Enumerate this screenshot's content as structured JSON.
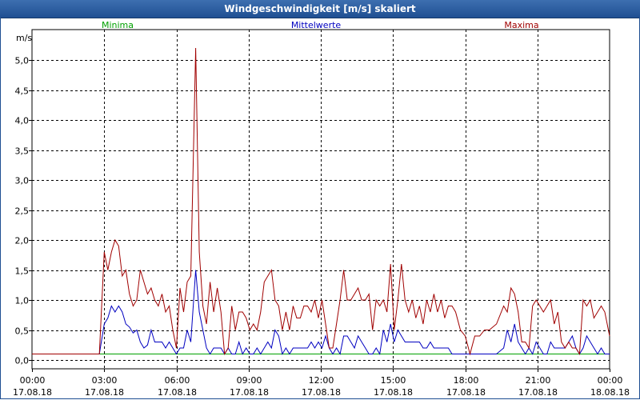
{
  "window": {
    "title": "Windgeschwindigkeit [m/s] skaliert"
  },
  "chart_data": {
    "type": "line",
    "ylabel": "m/s",
    "ylim": [
      -0.1,
      5.35
    ],
    "yticks": [
      0.0,
      0.5,
      1.0,
      1.5,
      2.0,
      2.5,
      3.0,
      3.5,
      4.0,
      4.5,
      5.0
    ],
    "ytick_labels": [
      "0,0",
      "0,5",
      "1,0",
      "1,5",
      "2,0",
      "2,5",
      "3,0",
      "3,5",
      "4,0",
      "4,5",
      "5,0"
    ],
    "xlim_hours": [
      0,
      24
    ],
    "xticks": [
      {
        "hour": 0,
        "time": "00:00",
        "date": "17.08.18"
      },
      {
        "hour": 3,
        "time": "03:00",
        "date": "17.08.18"
      },
      {
        "hour": 6,
        "time": "06:00",
        "date": "17.08.18"
      },
      {
        "hour": 9,
        "time": "09:00",
        "date": "17.08.18"
      },
      {
        "hour": 12,
        "time": "12:00",
        "date": "17.08.18"
      },
      {
        "hour": 15,
        "time": "15:00",
        "date": "17.08.18"
      },
      {
        "hour": 18,
        "time": "18:00",
        "date": "17.08.18"
      },
      {
        "hour": 21,
        "time": "21:00",
        "date": "17.08.18"
      },
      {
        "hour": 24,
        "time": "00:00",
        "date": "18.08.18"
      }
    ],
    "grid": true,
    "legend_position": "top",
    "series": [
      {
        "name": "Minima",
        "color": "#00a000",
        "points": [
          [
            0,
            0.1
          ],
          [
            24,
            0.1
          ]
        ]
      },
      {
        "name": "Mittelwerte",
        "color": "#0000c0",
        "points": [
          [
            0,
            0.1
          ],
          [
            2.8,
            0.1
          ],
          [
            3.0,
            0.6
          ],
          [
            3.15,
            0.7
          ],
          [
            3.3,
            0.9
          ],
          [
            3.45,
            0.8
          ],
          [
            3.6,
            0.9
          ],
          [
            3.75,
            0.8
          ],
          [
            3.9,
            0.6
          ],
          [
            4.05,
            0.55
          ],
          [
            4.2,
            0.45
          ],
          [
            4.35,
            0.5
          ],
          [
            4.5,
            0.3
          ],
          [
            4.65,
            0.2
          ],
          [
            4.8,
            0.25
          ],
          [
            4.95,
            0.5
          ],
          [
            5.1,
            0.3
          ],
          [
            5.25,
            0.3
          ],
          [
            5.4,
            0.3
          ],
          [
            5.55,
            0.2
          ],
          [
            5.7,
            0.3
          ],
          [
            5.85,
            0.2
          ],
          [
            6.0,
            0.1
          ],
          [
            6.15,
            0.2
          ],
          [
            6.3,
            0.2
          ],
          [
            6.45,
            0.5
          ],
          [
            6.6,
            0.3
          ],
          [
            6.8,
            1.5
          ],
          [
            6.95,
            0.8
          ],
          [
            7.1,
            0.5
          ],
          [
            7.25,
            0.2
          ],
          [
            7.4,
            0.1
          ],
          [
            7.55,
            0.2
          ],
          [
            7.7,
            0.2
          ],
          [
            7.85,
            0.2
          ],
          [
            8.0,
            0.1
          ],
          [
            8.15,
            0.2
          ],
          [
            8.3,
            0.1
          ],
          [
            8.45,
            0.1
          ],
          [
            8.6,
            0.3
          ],
          [
            8.75,
            0.1
          ],
          [
            8.9,
            0.2
          ],
          [
            9.05,
            0.1
          ],
          [
            9.2,
            0.1
          ],
          [
            9.35,
            0.2
          ],
          [
            9.5,
            0.1
          ],
          [
            9.65,
            0.2
          ],
          [
            9.8,
            0.3
          ],
          [
            9.95,
            0.2
          ],
          [
            10.1,
            0.5
          ],
          [
            10.25,
            0.4
          ],
          [
            10.4,
            0.1
          ],
          [
            10.55,
            0.2
          ],
          [
            10.7,
            0.1
          ],
          [
            10.85,
            0.2
          ],
          [
            11.0,
            0.2
          ],
          [
            11.15,
            0.2
          ],
          [
            11.3,
            0.2
          ],
          [
            11.45,
            0.2
          ],
          [
            11.6,
            0.3
          ],
          [
            11.75,
            0.2
          ],
          [
            11.9,
            0.3
          ],
          [
            12.05,
            0.2
          ],
          [
            12.2,
            0.4
          ],
          [
            12.35,
            0.2
          ],
          [
            12.5,
            0.1
          ],
          [
            12.65,
            0.2
          ],
          [
            12.8,
            0.1
          ],
          [
            12.95,
            0.4
          ],
          [
            13.1,
            0.4
          ],
          [
            13.25,
            0.3
          ],
          [
            13.4,
            0.2
          ],
          [
            13.55,
            0.4
          ],
          [
            13.7,
            0.3
          ],
          [
            13.85,
            0.2
          ],
          [
            14.0,
            0.1
          ],
          [
            14.15,
            0.1
          ],
          [
            14.3,
            0.2
          ],
          [
            14.45,
            0.1
          ],
          [
            14.6,
            0.5
          ],
          [
            14.75,
            0.3
          ],
          [
            14.9,
            0.6
          ],
          [
            15.05,
            0.3
          ],
          [
            15.2,
            0.5
          ],
          [
            15.35,
            0.4
          ],
          [
            15.5,
            0.3
          ],
          [
            15.65,
            0.3
          ],
          [
            15.8,
            0.3
          ],
          [
            15.95,
            0.3
          ],
          [
            16.1,
            0.3
          ],
          [
            16.25,
            0.2
          ],
          [
            16.4,
            0.2
          ],
          [
            16.55,
            0.3
          ],
          [
            16.7,
            0.2
          ],
          [
            16.85,
            0.2
          ],
          [
            17.0,
            0.2
          ],
          [
            17.15,
            0.2
          ],
          [
            17.3,
            0.2
          ],
          [
            17.45,
            0.1
          ],
          [
            17.6,
            0.1
          ],
          [
            17.8,
            0.1
          ],
          [
            18.0,
            0.1
          ],
          [
            18.4,
            0.1
          ],
          [
            18.6,
            0.1
          ],
          [
            18.8,
            0.1
          ],
          [
            19.0,
            0.1
          ],
          [
            19.3,
            0.1
          ],
          [
            19.6,
            0.2
          ],
          [
            19.75,
            0.5
          ],
          [
            19.9,
            0.3
          ],
          [
            20.05,
            0.6
          ],
          [
            20.2,
            0.3
          ],
          [
            20.35,
            0.2
          ],
          [
            20.5,
            0.1
          ],
          [
            20.65,
            0.2
          ],
          [
            20.8,
            0.1
          ],
          [
            20.95,
            0.3
          ],
          [
            21.1,
            0.2
          ],
          [
            21.25,
            0.1
          ],
          [
            21.4,
            0.1
          ],
          [
            21.55,
            0.3
          ],
          [
            21.7,
            0.2
          ],
          [
            21.85,
            0.2
          ],
          [
            22.0,
            0.2
          ],
          [
            22.15,
            0.2
          ],
          [
            22.3,
            0.3
          ],
          [
            22.45,
            0.4
          ],
          [
            22.6,
            0.2
          ],
          [
            22.75,
            0.1
          ],
          [
            22.9,
            0.2
          ],
          [
            23.05,
            0.4
          ],
          [
            23.2,
            0.3
          ],
          [
            23.35,
            0.2
          ],
          [
            23.5,
            0.1
          ],
          [
            23.65,
            0.2
          ],
          [
            23.8,
            0.1
          ],
          [
            24.0,
            0.1
          ]
        ]
      },
      {
        "name": "Maxima",
        "color": "#a00000",
        "points": [
          [
            0,
            0.1
          ],
          [
            2.8,
            0.1
          ],
          [
            3.0,
            1.8
          ],
          [
            3.15,
            1.5
          ],
          [
            3.3,
            1.8
          ],
          [
            3.45,
            2.0
          ],
          [
            3.6,
            1.9
          ],
          [
            3.75,
            1.4
          ],
          [
            3.9,
            1.5
          ],
          [
            4.05,
            1.1
          ],
          [
            4.2,
            0.9
          ],
          [
            4.35,
            1.0
          ],
          [
            4.5,
            1.5
          ],
          [
            4.65,
            1.3
          ],
          [
            4.8,
            1.1
          ],
          [
            4.95,
            1.2
          ],
          [
            5.1,
            1.0
          ],
          [
            5.25,
            0.9
          ],
          [
            5.4,
            1.1
          ],
          [
            5.55,
            0.8
          ],
          [
            5.7,
            0.9
          ],
          [
            5.85,
            0.5
          ],
          [
            6.0,
            0.2
          ],
          [
            6.15,
            1.2
          ],
          [
            6.3,
            0.8
          ],
          [
            6.45,
            1.3
          ],
          [
            6.6,
            1.4
          ],
          [
            6.8,
            5.2
          ],
          [
            6.95,
            1.8
          ],
          [
            7.1,
            0.9
          ],
          [
            7.25,
            0.6
          ],
          [
            7.4,
            1.3
          ],
          [
            7.55,
            0.8
          ],
          [
            7.7,
            1.2
          ],
          [
            7.85,
            0.8
          ],
          [
            8.0,
            0.1
          ],
          [
            8.15,
            0.2
          ],
          [
            8.3,
            0.9
          ],
          [
            8.45,
            0.5
          ],
          [
            8.6,
            0.8
          ],
          [
            8.75,
            0.8
          ],
          [
            8.9,
            0.7
          ],
          [
            9.05,
            0.5
          ],
          [
            9.2,
            0.6
          ],
          [
            9.35,
            0.5
          ],
          [
            9.5,
            0.8
          ],
          [
            9.65,
            1.3
          ],
          [
            9.8,
            1.4
          ],
          [
            9.95,
            1.5
          ],
          [
            10.1,
            1.0
          ],
          [
            10.25,
            0.9
          ],
          [
            10.4,
            0.5
          ],
          [
            10.55,
            0.8
          ],
          [
            10.7,
            0.5
          ],
          [
            10.85,
            0.9
          ],
          [
            11.0,
            0.7
          ],
          [
            11.15,
            0.7
          ],
          [
            11.3,
            0.9
          ],
          [
            11.45,
            0.9
          ],
          [
            11.6,
            0.8
          ],
          [
            11.75,
            1.0
          ],
          [
            11.9,
            0.7
          ],
          [
            12.05,
            1.0
          ],
          [
            12.2,
            0.6
          ],
          [
            12.35,
            0.2
          ],
          [
            12.5,
            0.2
          ],
          [
            12.65,
            0.6
          ],
          [
            12.8,
            1.0
          ],
          [
            12.95,
            1.5
          ],
          [
            13.1,
            1.0
          ],
          [
            13.25,
            1.0
          ],
          [
            13.4,
            1.1
          ],
          [
            13.55,
            1.2
          ],
          [
            13.7,
            1.0
          ],
          [
            13.85,
            1.0
          ],
          [
            14.0,
            1.1
          ],
          [
            14.15,
            0.5
          ],
          [
            14.3,
            1.0
          ],
          [
            14.45,
            0.9
          ],
          [
            14.6,
            1.0
          ],
          [
            14.75,
            0.8
          ],
          [
            14.9,
            1.6
          ],
          [
            15.05,
            0.5
          ],
          [
            15.2,
            1.0
          ],
          [
            15.35,
            1.6
          ],
          [
            15.5,
            1.0
          ],
          [
            15.65,
            0.8
          ],
          [
            15.8,
            1.0
          ],
          [
            15.95,
            0.7
          ],
          [
            16.1,
            0.9
          ],
          [
            16.25,
            0.6
          ],
          [
            16.4,
            1.0
          ],
          [
            16.55,
            0.8
          ],
          [
            16.7,
            1.1
          ],
          [
            16.85,
            0.8
          ],
          [
            17.0,
            1.0
          ],
          [
            17.15,
            0.7
          ],
          [
            17.3,
            0.9
          ],
          [
            17.45,
            0.9
          ],
          [
            17.6,
            0.8
          ],
          [
            17.8,
            0.5
          ],
          [
            18.0,
            0.4
          ],
          [
            18.2,
            0.1
          ],
          [
            18.4,
            0.4
          ],
          [
            18.6,
            0.4
          ],
          [
            18.8,
            0.5
          ],
          [
            19.0,
            0.5
          ],
          [
            19.3,
            0.6
          ],
          [
            19.6,
            0.9
          ],
          [
            19.75,
            0.8
          ],
          [
            19.9,
            1.2
          ],
          [
            20.05,
            1.1
          ],
          [
            20.2,
            0.8
          ],
          [
            20.35,
            0.3
          ],
          [
            20.5,
            0.3
          ],
          [
            20.65,
            0.2
          ],
          [
            20.8,
            0.9
          ],
          [
            20.95,
            1.0
          ],
          [
            21.1,
            0.9
          ],
          [
            21.25,
            0.8
          ],
          [
            21.4,
            0.9
          ],
          [
            21.55,
            1.0
          ],
          [
            21.7,
            0.6
          ],
          [
            21.85,
            0.8
          ],
          [
            22.0,
            0.3
          ],
          [
            22.15,
            0.2
          ],
          [
            22.3,
            0.3
          ],
          [
            22.45,
            0.2
          ],
          [
            22.6,
            0.2
          ],
          [
            22.75,
            0.1
          ],
          [
            22.9,
            1.0
          ],
          [
            23.05,
            0.9
          ],
          [
            23.2,
            1.0
          ],
          [
            23.35,
            0.7
          ],
          [
            23.5,
            0.8
          ],
          [
            23.65,
            0.9
          ],
          [
            23.8,
            0.8
          ],
          [
            24.0,
            0.4
          ]
        ]
      }
    ]
  }
}
